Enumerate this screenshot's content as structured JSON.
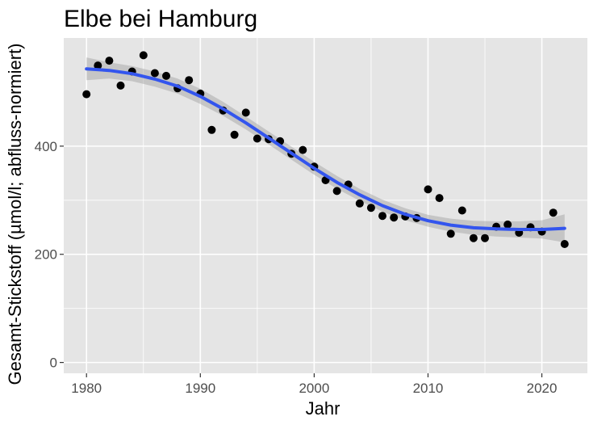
{
  "chart_data": {
    "type": "scatter",
    "title": "Elbe bei Hamburg",
    "xlabel": "Jahr",
    "ylabel": "Gesamt-Stickstoff (µmol/l; abfluss-normiert)",
    "xlim": [
      1978,
      2024
    ],
    "ylim": [
      -20,
      600
    ],
    "x_ticks": [
      1980,
      1990,
      2000,
      2010,
      2020
    ],
    "y_ticks": [
      0,
      200,
      400
    ],
    "grid": true,
    "legend": "none",
    "series": [
      {
        "kind": "points",
        "x": [
          1980,
          1981,
          1982,
          1983,
          1984,
          1985,
          1986,
          1987,
          1988,
          1989,
          1990,
          1991,
          1992,
          1993,
          1994,
          1995,
          1996,
          1997,
          1998,
          1999,
          2000,
          2001,
          2002,
          2003,
          2004,
          2005,
          2006,
          2007,
          2008,
          2009,
          2010,
          2011,
          2012,
          2013,
          2014,
          2015,
          2016,
          2017,
          2018,
          2019,
          2020,
          2021,
          2022
        ],
        "y": [
          496,
          549,
          558,
          512,
          538,
          568,
          535,
          530,
          507,
          522,
          497,
          430,
          466,
          421,
          462,
          414,
          413,
          409,
          386,
          393,
          362,
          337,
          317,
          329,
          294,
          286,
          271,
          268,
          270,
          267,
          320,
          304,
          238,
          281,
          230,
          230,
          251,
          255,
          240,
          250,
          242,
          277,
          219
        ]
      },
      {
        "kind": "smooth",
        "x": [
          1980,
          1982,
          1984,
          1986,
          1988,
          1990,
          1992,
          1994,
          1996,
          1998,
          2000,
          2002,
          2004,
          2006,
          2008,
          2010,
          2012,
          2014,
          2016,
          2018,
          2020,
          2022
        ],
        "y": [
          543,
          540,
          534,
          524,
          511,
          492,
          469,
          443,
          415,
          387,
          359,
          333,
          310,
          290,
          274,
          262,
          254,
          249,
          247,
          246,
          246,
          248
        ],
        "ci_lower": [
          522,
          525,
          520,
          510,
          497,
          478,
          456,
          431,
          403,
          375,
          347,
          321,
          299,
          279,
          263,
          251,
          242,
          236,
          233,
          231,
          229,
          222
        ],
        "ci_upper": [
          564,
          555,
          548,
          538,
          525,
          506,
          482,
          455,
          427,
          399,
          371,
          345,
          321,
          301,
          285,
          273,
          266,
          262,
          261,
          261,
          263,
          274
        ]
      }
    ],
    "colors": {
      "panel": "#e5e5e5",
      "grid": "#ffffff",
      "points": "#000000",
      "line": "#3355ee",
      "ribbon": "#9d9d9d"
    }
  }
}
